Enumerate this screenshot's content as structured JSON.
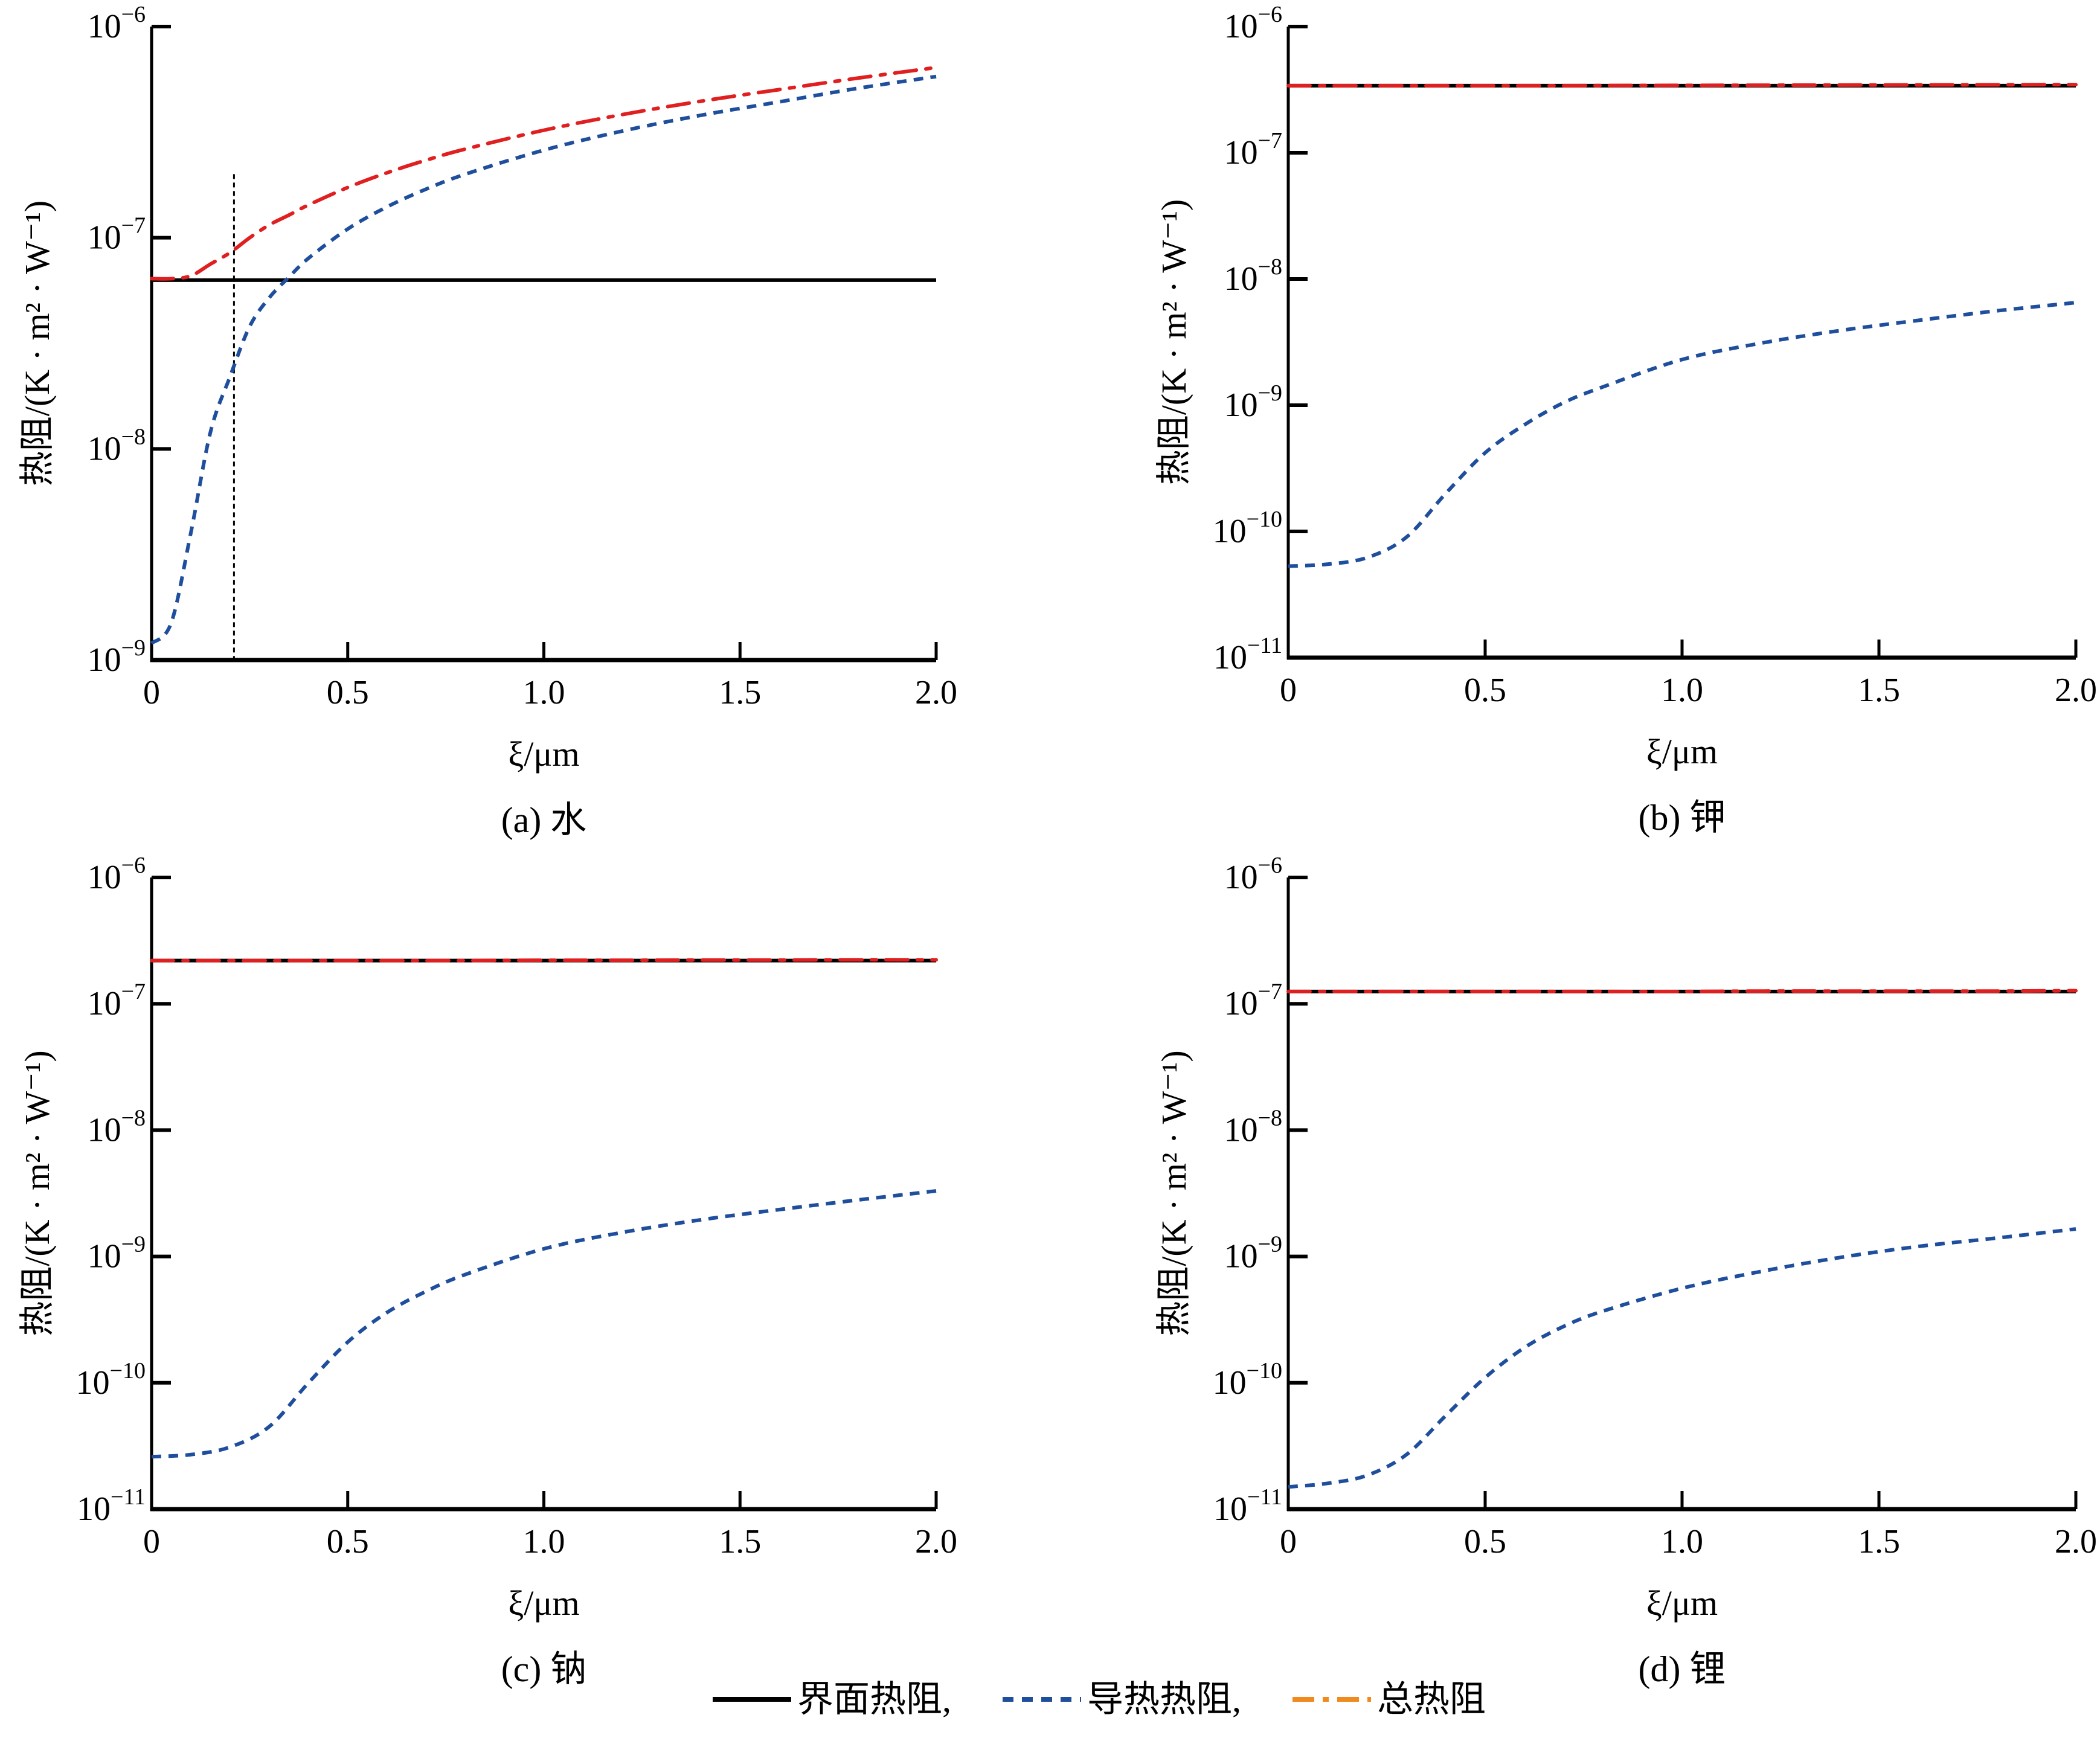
{
  "colors": {
    "interface": "#000000",
    "conduction": "#1f4e9c",
    "total_line": "#e02020",
    "total_legend": "#f0891e",
    "marker": "#000000"
  },
  "legend": {
    "items": [
      {
        "label": "界面热阻,",
        "style": "solid",
        "color": "#000000"
      },
      {
        "label": "导热热阻,",
        "style": "dashed",
        "color": "#1f4e9c"
      },
      {
        "label": "总热阻",
        "style": "dashdot",
        "color": "#f0891e"
      }
    ],
    "placement": "bottom-center"
  },
  "chart_data": [
    {
      "type": "line",
      "caption": "(a)  水",
      "xlabel": "ξ/μm",
      "ylabel": "热阻/(K · m² · W⁻¹)",
      "yscale": "log",
      "xlim": [
        0,
        2.0
      ],
      "ylim": [
        1e-09,
        1e-06
      ],
      "xticks": [
        "0",
        "0.5",
        "1.0",
        "1.5",
        "2.0"
      ],
      "yticks": [
        {
          "base": "10",
          "exp": "−6",
          "value": 1e-06
        },
        {
          "base": "10",
          "exp": "−7",
          "value": 1e-07
        },
        {
          "base": "10",
          "exp": "−8",
          "value": 1e-08
        },
        {
          "base": "10",
          "exp": "−9",
          "value": 1e-09
        }
      ],
      "vline": 0.21,
      "x": [
        0,
        0.05,
        0.1,
        0.15,
        0.2,
        0.25,
        0.3,
        0.35,
        0.4,
        0.5,
        0.6,
        0.7,
        0.8,
        1.0,
        1.2,
        1.4,
        1.6,
        1.8,
        2.0
      ],
      "series": [
        {
          "name": "界面热阻",
          "values": [
            6.3e-08,
            6.3e-08,
            6.3e-08,
            6.3e-08,
            6.3e-08,
            6.3e-08,
            6.3e-08,
            6.3e-08,
            6.3e-08,
            6.3e-08,
            6.3e-08,
            6.3e-08,
            6.3e-08,
            6.3e-08,
            6.3e-08,
            6.3e-08,
            6.3e-08,
            6.3e-08,
            6.3e-08
          ]
        },
        {
          "name": "导热热阻",
          "values": [
            1.2e-09,
            1.5e-09,
            4e-09,
            1.2e-08,
            2.2e-08,
            3.8e-08,
            5.2e-08,
            6.5e-08,
            8e-08,
            1.1e-07,
            1.4e-07,
            1.7e-07,
            2e-07,
            2.6e-07,
            3.2e-07,
            3.8e-07,
            4.4e-07,
            5.1e-07,
            5.8e-07
          ]
        },
        {
          "name": "总热阻",
          "values": [
            6.4e-08,
            6.4e-08,
            6.6e-08,
            7.5e-08,
            8.5e-08,
            1e-07,
            1.15e-07,
            1.28e-07,
            1.43e-07,
            1.73e-07,
            2.03e-07,
            2.33e-07,
            2.63e-07,
            3.23e-07,
            3.83e-07,
            4.43e-07,
            5.03e-07,
            5.7e-07,
            6.4e-07
          ]
        }
      ]
    },
    {
      "type": "line",
      "caption": "(b)  钾",
      "xlabel": "ξ/μm",
      "ylabel": "热阻/(K · m² · W⁻¹)",
      "yscale": "log",
      "xlim": [
        0,
        2.0
      ],
      "ylim": [
        1e-11,
        1e-06
      ],
      "xticks": [
        "0",
        "0.5",
        "1.0",
        "1.5",
        "2.0"
      ],
      "yticks": [
        {
          "base": "10",
          "exp": "−6",
          "value": 1e-06
        },
        {
          "base": "10",
          "exp": "−7",
          "value": 1e-07
        },
        {
          "base": "10",
          "exp": "−8",
          "value": 1e-08
        },
        {
          "base": "10",
          "exp": "−9",
          "value": 1e-09
        },
        {
          "base": "10",
          "exp": "−10",
          "value": 1e-10
        },
        {
          "base": "10",
          "exp": "−11",
          "value": 1e-11
        }
      ],
      "x": [
        0,
        0.1,
        0.2,
        0.3,
        0.4,
        0.5,
        0.6,
        0.7,
        0.8,
        1.0,
        1.2,
        1.4,
        1.6,
        1.8,
        2.0
      ],
      "series": [
        {
          "name": "界面热阻",
          "values": [
            3.4e-07,
            3.4e-07,
            3.4e-07,
            3.4e-07,
            3.4e-07,
            3.4e-07,
            3.4e-07,
            3.4e-07,
            3.4e-07,
            3.4e-07,
            3.4e-07,
            3.4e-07,
            3.4e-07,
            3.4e-07,
            3.4e-07
          ]
        },
        {
          "name": "导热热阻",
          "values": [
            5.3e-11,
            5.5e-11,
            6.2e-11,
            9e-11,
            2e-10,
            4.2e-10,
            7e-10,
            1.05e-09,
            1.4e-09,
            2.3e-09,
            3.1e-09,
            3.9e-09,
            4.7e-09,
            5.6e-09,
            6.5e-09
          ]
        },
        {
          "name": "总热阻",
          "values": [
            3.4e-07,
            3.4e-07,
            3.4e-07,
            3.4e-07,
            3.4e-07,
            3.4e-07,
            3.4e-07,
            3.4e-07,
            3.41e-07,
            3.42e-07,
            3.43e-07,
            3.44e-07,
            3.45e-07,
            3.46e-07,
            3.47e-07
          ]
        }
      ]
    },
    {
      "type": "line",
      "caption": "(c)  钠",
      "xlabel": "ξ/μm",
      "ylabel": "热阻/(K · m² · W⁻¹)",
      "yscale": "log",
      "xlim": [
        0,
        2.0
      ],
      "ylim": [
        1e-11,
        1e-06
      ],
      "xticks": [
        "0",
        "0.5",
        "1.0",
        "1.5",
        "2.0"
      ],
      "yticks": [
        {
          "base": "10",
          "exp": "−6",
          "value": 1e-06
        },
        {
          "base": "10",
          "exp": "−7",
          "value": 1e-07
        },
        {
          "base": "10",
          "exp": "−8",
          "value": 1e-08
        },
        {
          "base": "10",
          "exp": "−9",
          "value": 1e-09
        },
        {
          "base": "10",
          "exp": "−10",
          "value": 1e-10
        },
        {
          "base": "10",
          "exp": "−11",
          "value": 1e-11
        }
      ],
      "x": [
        0,
        0.1,
        0.2,
        0.3,
        0.4,
        0.5,
        0.6,
        0.7,
        0.8,
        1.0,
        1.2,
        1.4,
        1.6,
        1.8,
        2.0
      ],
      "series": [
        {
          "name": "界面热阻",
          "values": [
            2.2e-07,
            2.2e-07,
            2.2e-07,
            2.2e-07,
            2.2e-07,
            2.2e-07,
            2.2e-07,
            2.2e-07,
            2.2e-07,
            2.2e-07,
            2.2e-07,
            2.2e-07,
            2.2e-07,
            2.2e-07,
            2.2e-07
          ]
        },
        {
          "name": "导热热阻",
          "values": [
            2.6e-11,
            2.7e-11,
            3.1e-11,
            4.5e-11,
            1e-10,
            2.1e-10,
            3.6e-10,
            5.3e-10,
            7.2e-10,
            1.15e-09,
            1.55e-09,
            1.95e-09,
            2.35e-09,
            2.8e-09,
            3.3e-09
          ]
        },
        {
          "name": "总热阻",
          "values": [
            2.2e-07,
            2.2e-07,
            2.2e-07,
            2.2e-07,
            2.2e-07,
            2.2e-07,
            2.2e-07,
            2.2e-07,
            2.2e-07,
            2.21e-07,
            2.21e-07,
            2.22e-07,
            2.22e-07,
            2.23e-07,
            2.23e-07
          ]
        }
      ]
    },
    {
      "type": "line",
      "caption": "(d)  锂",
      "xlabel": "ξ/μm",
      "ylabel": "热阻/(K · m² · W⁻¹)",
      "yscale": "log",
      "xlim": [
        0,
        2.0
      ],
      "ylim": [
        1e-11,
        1e-06
      ],
      "xticks": [
        "0",
        "0.5",
        "1.0",
        "1.5",
        "2.0"
      ],
      "yticks": [
        {
          "base": "10",
          "exp": "−6",
          "value": 1e-06
        },
        {
          "base": "10",
          "exp": "−7",
          "value": 1e-07
        },
        {
          "base": "10",
          "exp": "−8",
          "value": 1e-08
        },
        {
          "base": "10",
          "exp": "−9",
          "value": 1e-09
        },
        {
          "base": "10",
          "exp": "−10",
          "value": 1e-10
        },
        {
          "base": "10",
          "exp": "−11",
          "value": 1e-11
        }
      ],
      "x": [
        0,
        0.1,
        0.2,
        0.3,
        0.4,
        0.5,
        0.6,
        0.7,
        0.8,
        1.0,
        1.2,
        1.4,
        1.6,
        1.8,
        2.0
      ],
      "series": [
        {
          "name": "界面热阻",
          "values": [
            1.25e-07,
            1.25e-07,
            1.25e-07,
            1.25e-07,
            1.25e-07,
            1.25e-07,
            1.25e-07,
            1.25e-07,
            1.25e-07,
            1.25e-07,
            1.25e-07,
            1.25e-07,
            1.25e-07,
            1.25e-07,
            1.25e-07
          ]
        },
        {
          "name": "导热热阻",
          "values": [
            1.5e-11,
            1.6e-11,
            1.85e-11,
            2.7e-11,
            5.5e-11,
            1.1e-10,
            1.9e-10,
            2.8e-10,
            3.7e-10,
            5.6e-10,
            7.6e-10,
            9.8e-10,
            1.2e-09,
            1.4e-09,
            1.65e-09
          ]
        },
        {
          "name": "总热阻",
          "values": [
            1.25e-07,
            1.25e-07,
            1.25e-07,
            1.25e-07,
            1.25e-07,
            1.25e-07,
            1.25e-07,
            1.25e-07,
            1.25e-07,
            1.25e-07,
            1.26e-07,
            1.26e-07,
            1.26e-07,
            1.26e-07,
            1.27e-07
          ]
        }
      ]
    }
  ]
}
